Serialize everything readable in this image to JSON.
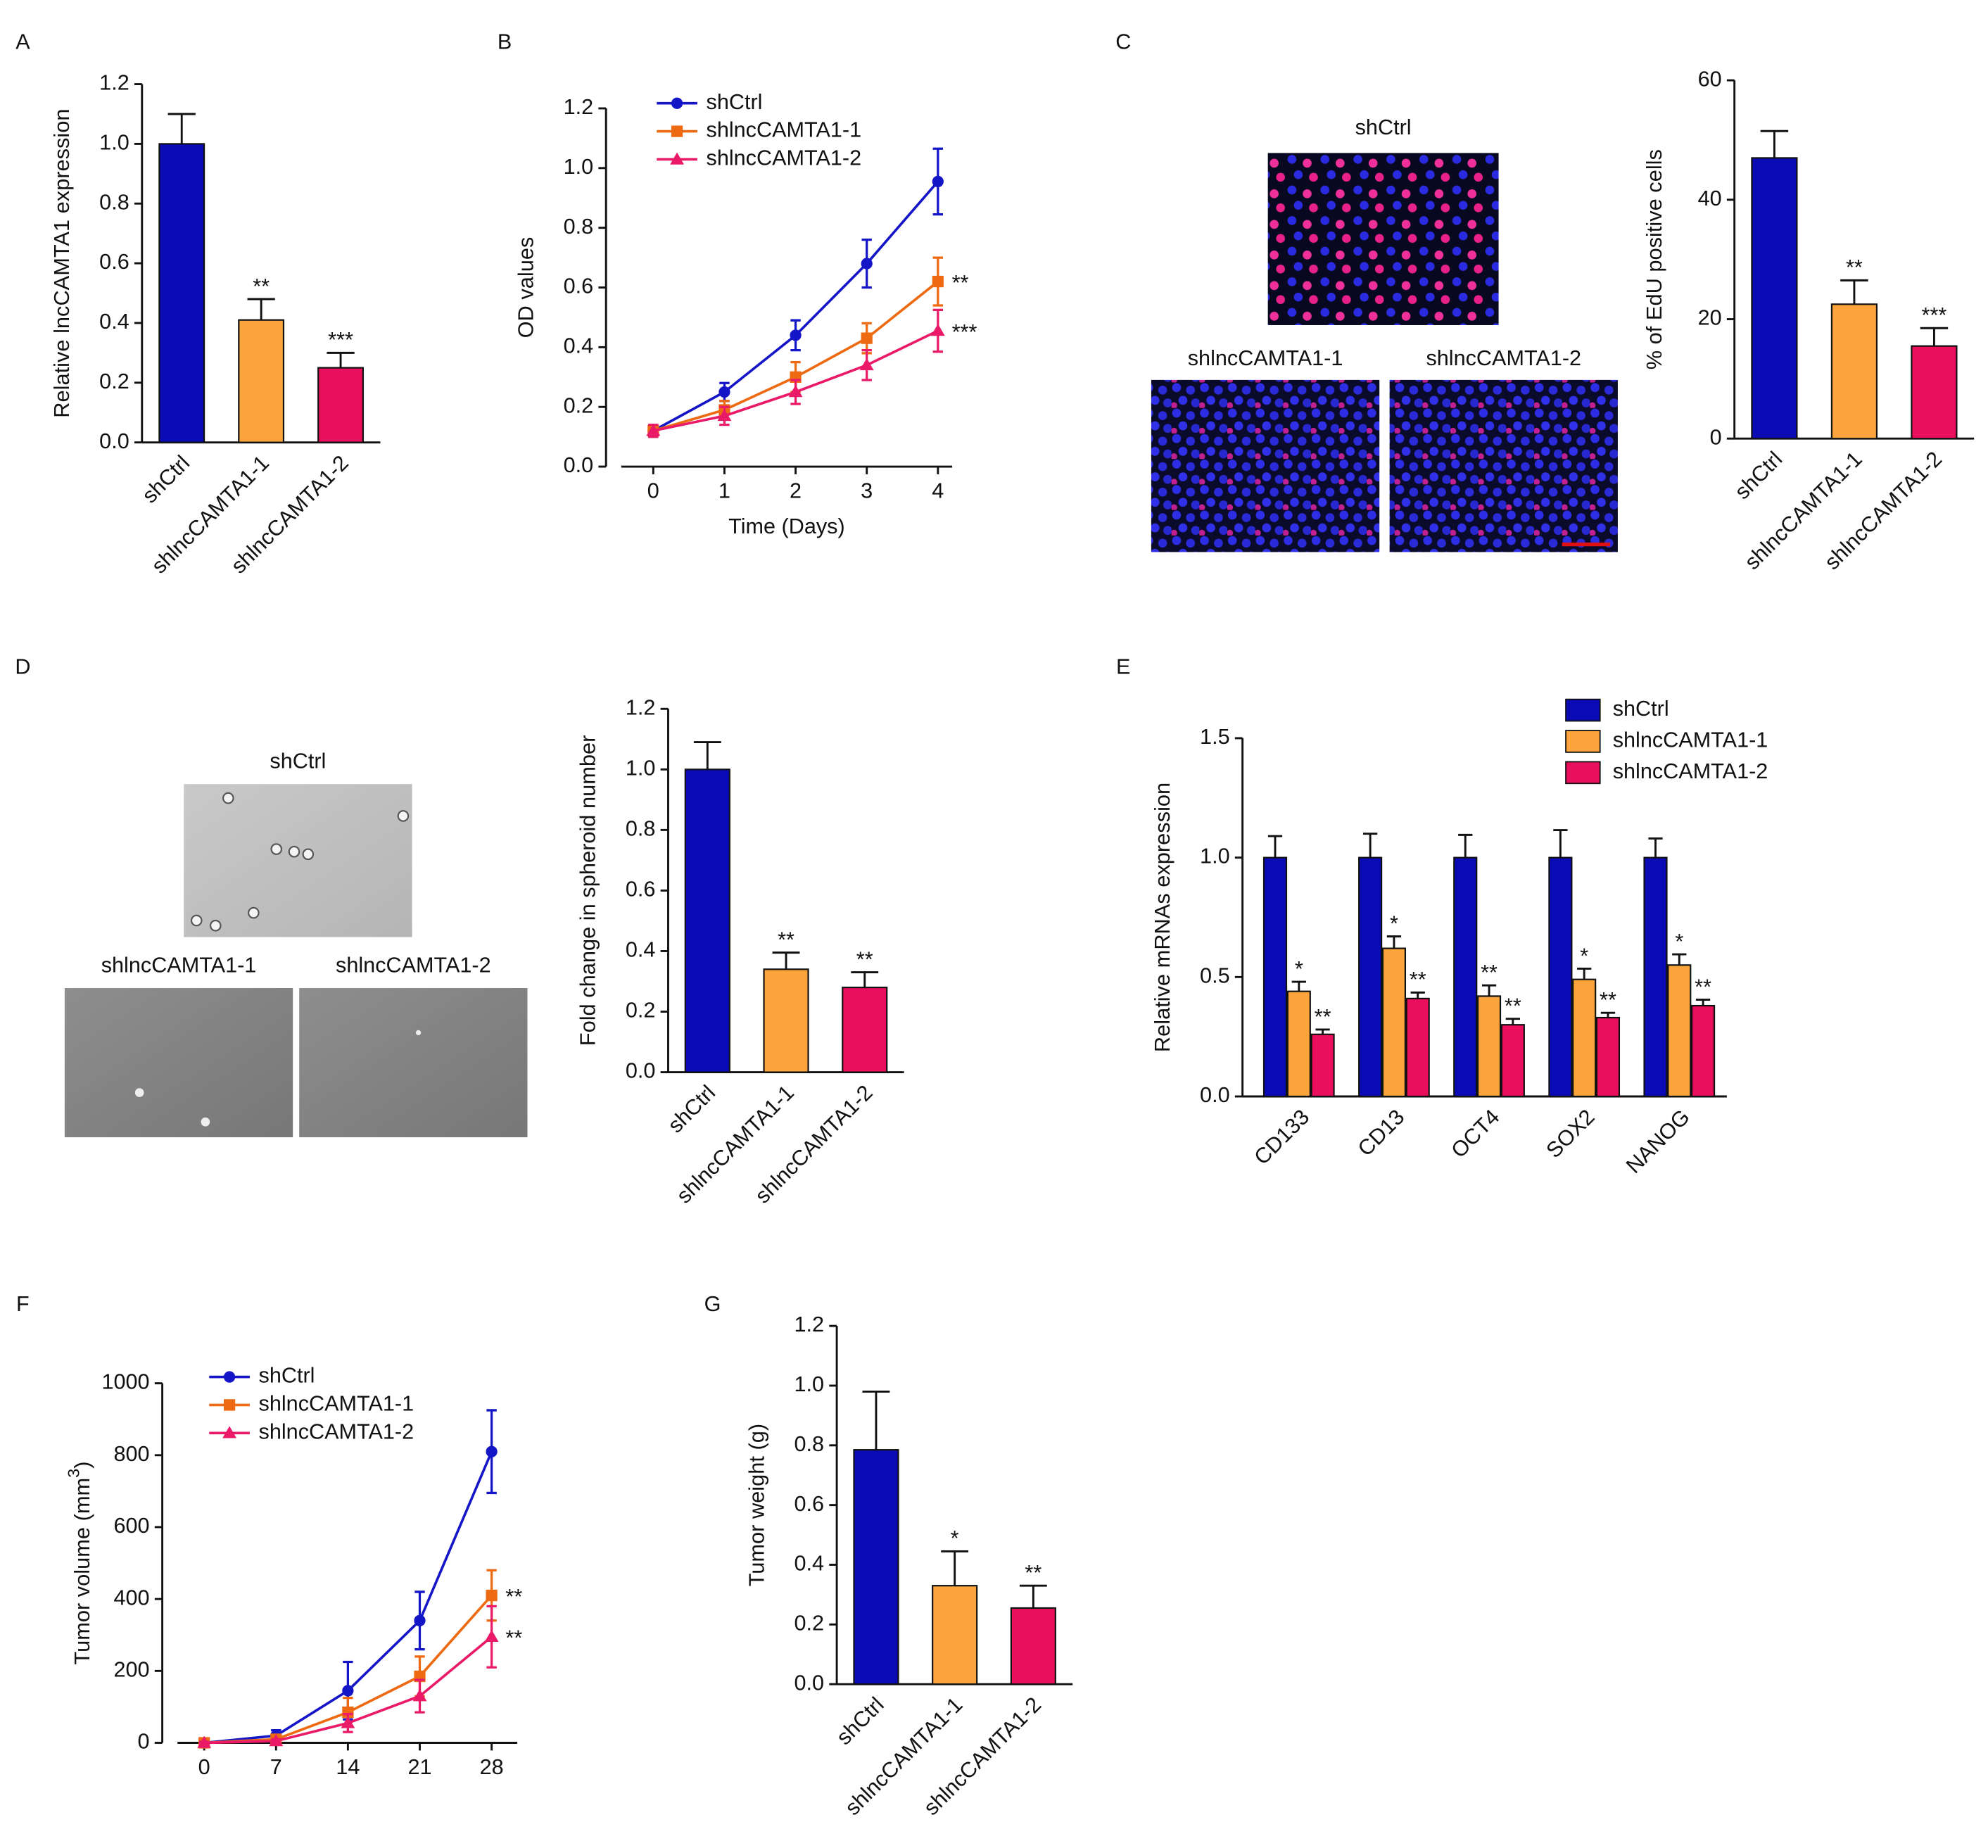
{
  "chart_data": [
    {
      "panel": "A",
      "type": "bar",
      "ylabel": "Relative lncCAMTA1 expression",
      "categories": [
        "shCtrl",
        "shlncCAMTA1-1",
        "shlncCAMTA1-2"
      ],
      "values": [
        1.0,
        0.41,
        0.25
      ],
      "errors": [
        0.1,
        0.07,
        0.05
      ],
      "colors": [
        "#0b0bb5",
        "#fba53c",
        "#ea0f5c"
      ],
      "annotations": [
        null,
        "**",
        "***"
      ],
      "ylim": [
        0,
        1.2
      ],
      "yticks": [
        {
          "value": 0,
          "label": "0.0"
        },
        0.2,
        0.4,
        0.6,
        0.8,
        {
          "value": 1,
          "label": "1.0"
        },
        1.2
      ]
    },
    {
      "panel": "B",
      "type": "line",
      "xlabel": "Time (Days)",
      "ylabel": "OD values",
      "x": [
        0,
        1,
        2,
        3,
        4
      ],
      "xlim": [
        -0.45,
        4.2
      ],
      "xticks": [
        0,
        1,
        2,
        3,
        4
      ],
      "ylim": [
        0,
        1.2
      ],
      "yticks": [
        {
          "value": 0,
          "label": "0.0"
        },
        0.2,
        0.4,
        0.6,
        0.8,
        {
          "value": 1,
          "label": "1.0"
        },
        1.2
      ],
      "series": [
        {
          "name": "shCtrl",
          "color": "#1515c8",
          "marker": "circle",
          "values": [
            0.12,
            0.25,
            0.44,
            0.68,
            0.955
          ],
          "errors": [
            0.02,
            0.03,
            0.05,
            0.08,
            0.11
          ],
          "annotation": null
        },
        {
          "name": "shlncCAMTA1-1",
          "color": "#ee6a12",
          "marker": "square",
          "values": [
            0.12,
            0.19,
            0.3,
            0.43,
            0.62
          ],
          "errors": [
            0.02,
            0.03,
            0.05,
            0.05,
            0.08
          ],
          "annotation": "**"
        },
        {
          "name": "shlncCAMTA1-2",
          "color": "#ea1a68",
          "marker": "triangle",
          "values": [
            0.12,
            0.17,
            0.25,
            0.34,
            0.455
          ],
          "errors": [
            0.02,
            0.03,
            0.04,
            0.05,
            0.07
          ],
          "annotation": "***"
        }
      ]
    },
    {
      "panel": "C",
      "type": "bar",
      "ylabel": "% of EdU positive cells",
      "image_labels": [
        "shCtrl",
        "shlncCAMTA1-1",
        "shlncCAMTA1-2"
      ],
      "categories": [
        "shCtrl",
        "shlncCAMTA1-1",
        "shlncCAMTA1-2"
      ],
      "values": [
        47,
        22.5,
        15.5
      ],
      "errors": [
        4.5,
        4,
        3
      ],
      "colors": [
        "#0b0bb5",
        "#fba53c",
        "#ea0f5c"
      ],
      "annotations": [
        null,
        "**",
        "***"
      ],
      "ylim": [
        0,
        60
      ],
      "yticks": [
        0,
        20,
        40,
        60
      ]
    },
    {
      "panel": "D",
      "type": "bar",
      "ylabel": "Fold change in spheroid number",
      "image_labels": [
        "shCtrl",
        "shlncCAMTA1-1",
        "shlncCAMTA1-2"
      ],
      "categories": [
        "shCtrl",
        "shlncCAMTA1-1",
        "shlncCAMTA1-2"
      ],
      "values": [
        1.0,
        0.34,
        0.28
      ],
      "errors": [
        0.09,
        0.055,
        0.05
      ],
      "colors": [
        "#0b0bb5",
        "#fba53c",
        "#ea0f5c"
      ],
      "annotations": [
        null,
        "**",
        "**"
      ],
      "ylim": [
        0,
        1.2
      ],
      "yticks": [
        {
          "value": 0,
          "label": "0.0"
        },
        0.2,
        0.4,
        0.6,
        0.8,
        {
          "value": 1,
          "label": "1.0"
        },
        1.2
      ]
    },
    {
      "panel": "E",
      "type": "bar",
      "ylabel": "Relative mRNAs expression",
      "categories": [
        "CD133",
        "CD13",
        "OCT4",
        "SOX2",
        "NANOG"
      ],
      "ylim": [
        0,
        1.5
      ],
      "yticks": [
        {
          "value": 0,
          "label": "0.0"
        },
        0.5,
        {
          "value": 1,
          "label": "1.0"
        },
        1.5
      ],
      "series": [
        {
          "name": "shCtrl",
          "color": "#0b0bb5",
          "values": [
            1,
            1,
            1,
            1,
            1
          ],
          "errors": [
            0.09,
            0.1,
            0.095,
            0.115,
            0.08
          ],
          "annotations": [
            null,
            null,
            null,
            null,
            null
          ]
        },
        {
          "name": "shlncCAMTA1-1",
          "color": "#fba53c",
          "values": [
            0.44,
            0.62,
            0.42,
            0.49,
            0.55
          ],
          "errors": [
            0.04,
            0.05,
            0.045,
            0.045,
            0.045
          ],
          "annotations": [
            "*",
            "*",
            "**",
            "*",
            "*"
          ]
        },
        {
          "name": "shlncCAMTA1-2",
          "color": "#ea0f5c",
          "values": [
            0.26,
            0.41,
            0.3,
            0.33,
            0.38
          ],
          "errors": [
            0.02,
            0.025,
            0.025,
            0.02,
            0.025
          ],
          "annotations": [
            "**",
            "**",
            "**",
            "**",
            "**"
          ]
        }
      ]
    },
    {
      "panel": "F",
      "type": "line",
      "ylabel": "Tumor volume (mm",
      "ylabel_sup": "3",
      "ylabel_end": ")",
      "x": [
        0,
        7,
        14,
        21,
        28
      ],
      "xlim": [
        -2.6,
        30.5
      ],
      "xticks": [
        0,
        7,
        14,
        21,
        28
      ],
      "ylim": [
        0,
        1000
      ],
      "yticks": [
        0,
        200,
        400,
        600,
        800,
        1000
      ],
      "series": [
        {
          "name": "shCtrl",
          "color": "#1515c8",
          "marker": "circle",
          "values": [
            0,
            20,
            145,
            340,
            810
          ],
          "errors": [
            5,
            15,
            80,
            80,
            115
          ],
          "annotation": null
        },
        {
          "name": "shlncCAMTA1-1",
          "color": "#ee6a12",
          "marker": "square",
          "values": [
            0,
            10,
            85,
            185,
            410
          ],
          "errors": [
            5,
            10,
            40,
            55,
            70
          ],
          "annotation": "**"
        },
        {
          "name": "shlncCAMTA1-2",
          "color": "#ea1a68",
          "marker": "triangle",
          "values": [
            0,
            5,
            55,
            130,
            295
          ],
          "errors": [
            3,
            5,
            25,
            45,
            85
          ],
          "annotation": "**"
        }
      ]
    },
    {
      "panel": "G",
      "type": "bar",
      "ylabel": "Tumor weight (g)",
      "categories": [
        "shCtrl",
        "shlncCAMTA1-1",
        "shlncCAMTA1-2"
      ],
      "values": [
        0.785,
        0.33,
        0.255
      ],
      "errors": [
        0.195,
        0.115,
        0.075
      ],
      "colors": [
        "#0b0bb5",
        "#fba53c",
        "#ea0f5c"
      ],
      "annotations": [
        null,
        "*",
        "**"
      ],
      "ylim": [
        0,
        1.2
      ],
      "yticks": [
        {
          "value": 0,
          "label": "0.0"
        },
        0.2,
        0.4,
        0.6,
        0.8,
        {
          "value": 1,
          "label": "1.0"
        },
        1.2
      ]
    }
  ]
}
